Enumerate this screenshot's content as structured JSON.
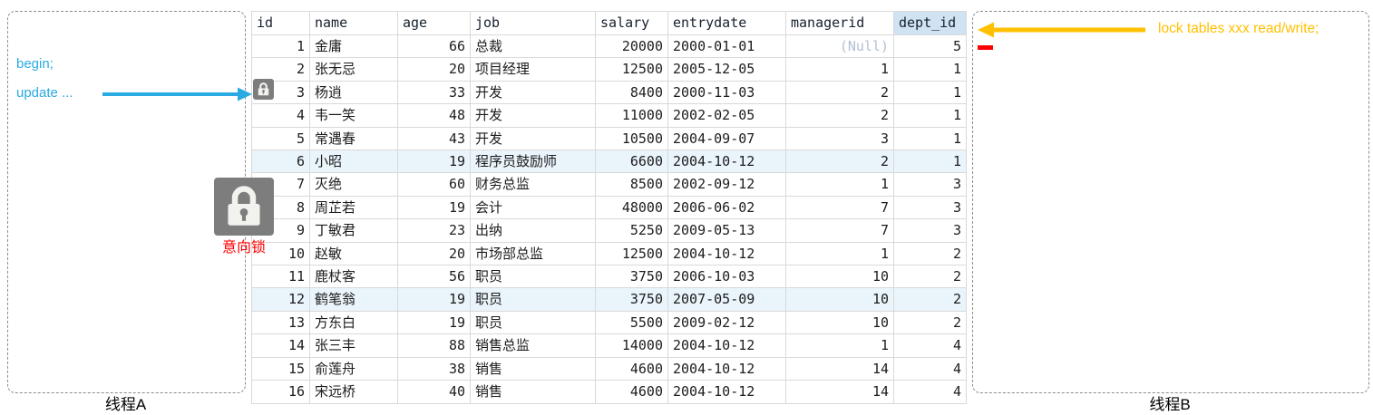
{
  "colors": {
    "blue": "#29ABE2",
    "orange": "#FFC000",
    "red": "#FF0000",
    "lock-gray": "#7D7D7D",
    "row-highlight": "#EAF4FB",
    "col-highlight": "#CFE3F3",
    "null-text": "#B3C0D4"
  },
  "thread_a": {
    "label": "线程A",
    "statement_1": "begin;",
    "statement_2": "update ..."
  },
  "thread_b": {
    "label": "线程B",
    "statement": "lock tables xxx read/write;"
  },
  "intention_lock_label": "意向锁",
  "table": {
    "null_text": "(Null)",
    "highlighted_rows": [
      6,
      12
    ],
    "locked_row_id": 3,
    "columns": [
      {
        "key": "id",
        "label": "id",
        "align": "right"
      },
      {
        "key": "name",
        "label": "name",
        "align": "left"
      },
      {
        "key": "age",
        "label": "age",
        "align": "right"
      },
      {
        "key": "job",
        "label": "job",
        "align": "left"
      },
      {
        "key": "salary",
        "label": "salary",
        "align": "right"
      },
      {
        "key": "entrydate",
        "label": "entrydate",
        "align": "left"
      },
      {
        "key": "managerid",
        "label": "managerid",
        "align": "right"
      },
      {
        "key": "dept_id",
        "label": "dept_id",
        "align": "right",
        "highlighted": true
      }
    ],
    "rows": [
      [
        "1",
        "金庸",
        "66",
        "总裁",
        "20000",
        "2000-01-01",
        "(Null)",
        "5"
      ],
      [
        "2",
        "张无忌",
        "20",
        "项目经理",
        "12500",
        "2005-12-05",
        "1",
        "1"
      ],
      [
        "3",
        "杨逍",
        "33",
        "开发",
        "8400",
        "2000-11-03",
        "2",
        "1"
      ],
      [
        "4",
        "韦一笑",
        "48",
        "开发",
        "11000",
        "2002-02-05",
        "2",
        "1"
      ],
      [
        "5",
        "常遇春",
        "43",
        "开发",
        "10500",
        "2004-09-07",
        "3",
        "1"
      ],
      [
        "6",
        "小昭",
        "19",
        "程序员鼓励师",
        "6600",
        "2004-10-12",
        "2",
        "1"
      ],
      [
        "7",
        "灭绝",
        "60",
        "财务总监",
        "8500",
        "2002-09-12",
        "1",
        "3"
      ],
      [
        "8",
        "周芷若",
        "19",
        "会计",
        "48000",
        "2006-06-02",
        "7",
        "3"
      ],
      [
        "9",
        "丁敏君",
        "23",
        "出纳",
        "5250",
        "2009-05-13",
        "7",
        "3"
      ],
      [
        "10",
        "赵敏",
        "20",
        "市场部总监",
        "12500",
        "2004-10-12",
        "1",
        "2"
      ],
      [
        "11",
        "鹿杖客",
        "56",
        "职员",
        "3750",
        "2006-10-03",
        "10",
        "2"
      ],
      [
        "12",
        "鹤笔翁",
        "19",
        "职员",
        "3750",
        "2007-05-09",
        "10",
        "2"
      ],
      [
        "13",
        "方东白",
        "19",
        "职员",
        "5500",
        "2009-02-12",
        "10",
        "2"
      ],
      [
        "14",
        "张三丰",
        "88",
        "销售总监",
        "14000",
        "2004-10-12",
        "1",
        "4"
      ],
      [
        "15",
        "俞莲舟",
        "38",
        "销售",
        "4600",
        "2004-10-12",
        "14",
        "4"
      ],
      [
        "16",
        "宋远桥",
        "40",
        "销售",
        "4600",
        "2004-10-12",
        "14",
        "4"
      ]
    ]
  }
}
